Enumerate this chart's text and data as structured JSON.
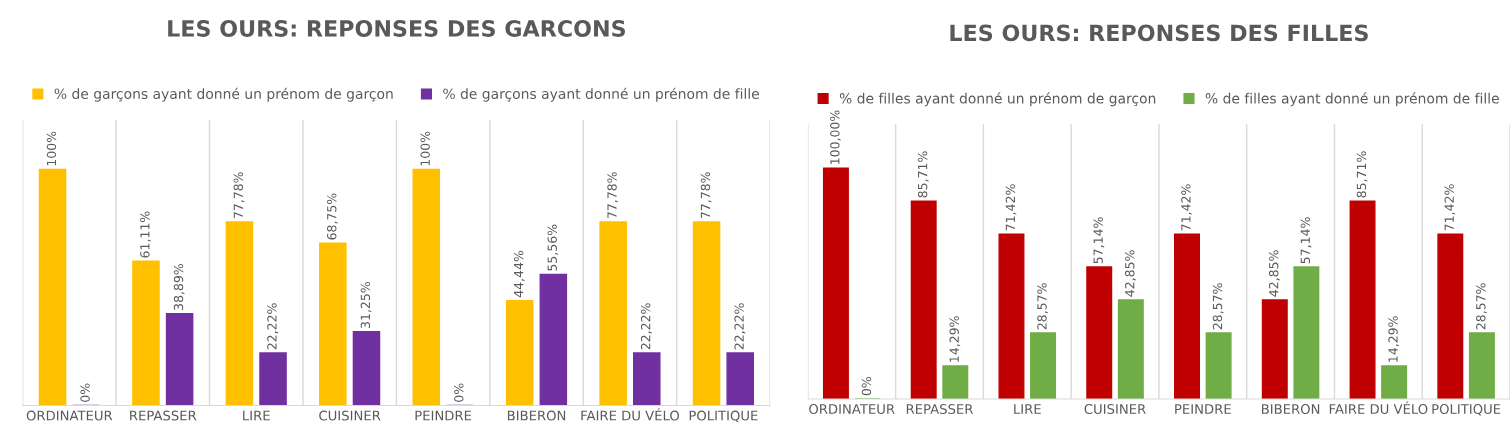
{
  "chart_data": [
    {
      "type": "bar",
      "title": "LES OURS: REPONSES DES GARCONS",
      "categories": [
        "ORDINATEUR",
        "REPASSER",
        "LIRE",
        "CUISINER",
        "PEINDRE",
        "BIBERON",
        "FAIRE DU VÉLO",
        "POLITIQUE"
      ],
      "series": [
        {
          "name": "% de garçons ayant donné un prénom de garçon",
          "color": "#ffc000",
          "values": [
            100,
            61.11,
            77.78,
            68.75,
            100,
            44.44,
            77.78,
            77.78
          ],
          "value_labels": [
            "100%",
            "61,11%",
            "77,78%",
            "68,75%",
            "100%",
            "44,44%",
            "77,78%",
            "77,78%"
          ]
        },
        {
          "name": "% de garçons ayant donné un prénom de fille",
          "color": "#7030a0",
          "values": [
            0,
            38.89,
            22.22,
            31.25,
            0,
            55.56,
            22.22,
            22.22
          ],
          "value_labels": [
            "0%",
            "38,89%",
            "22,22%",
            "31,25%",
            "0%",
            "55,56%",
            "22,22%",
            "22,22%"
          ]
        }
      ],
      "ylim": [
        0,
        121
      ],
      "tick_labels": "x",
      "grid": "x",
      "legend": "top"
    },
    {
      "type": "bar",
      "title": "LES OURS: REPONSES DES FILLES",
      "categories": [
        "ORDINATEUR",
        "REPASSER",
        "LIRE",
        "CUISINER",
        "PEINDRE",
        "BIBERON",
        "FAIRE DU VÉLO",
        "POLITIQUE"
      ],
      "series": [
        {
          "name": "% de filles ayant donné un prénom de garçon",
          "color": "#c00000",
          "values": [
            100,
            85.71,
            71.42,
            57.14,
            71.42,
            42.85,
            85.71,
            71.42
          ],
          "value_labels": [
            "100,00%",
            "85,71%",
            "71,42%",
            "57,14%",
            "71,42%",
            "42,85%",
            "85,71%",
            "71,42%"
          ]
        },
        {
          "name": "% de filles ayant donné un prénom de fille",
          "color": "#70ad47",
          "values": [
            0,
            14.29,
            28.57,
            42.85,
            28.57,
            57.14,
            14.29,
            28.57
          ],
          "value_labels": [
            "0%",
            "14,29%",
            "28,57%",
            "42,85%",
            "28,57%",
            "57,14%",
            "14,29%",
            "28,57%"
          ]
        }
      ],
      "ylim": [
        0,
        119
      ],
      "tick_labels": "x",
      "grid": "x",
      "legend": "top"
    }
  ]
}
